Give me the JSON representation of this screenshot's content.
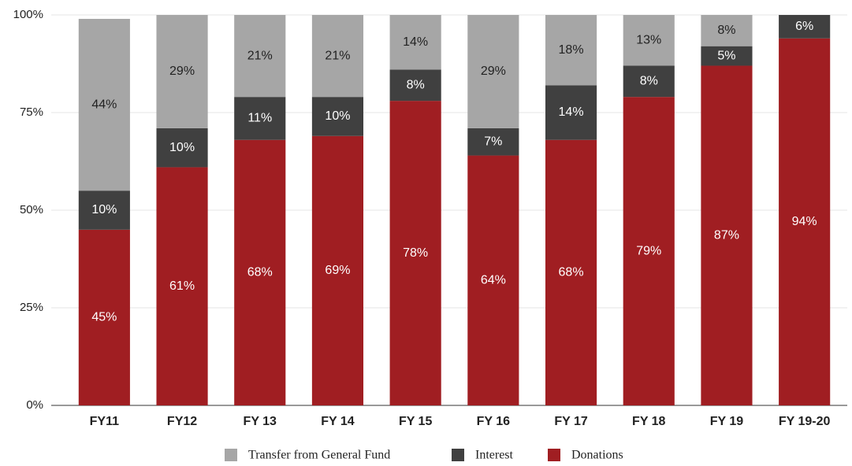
{
  "chart_data": {
    "type": "stacked_bar",
    "categories": [
      "FY11",
      "FY12",
      "FY 13",
      "FY 14",
      "FY 15",
      "FY 16",
      "FY 17",
      "FY 18",
      "FY 19",
      "FY 19-20"
    ],
    "series": [
      {
        "name": "Transfer from General Fund",
        "color": "#a6a6a6",
        "values": [
          44,
          29,
          21,
          21,
          14,
          29,
          18,
          13,
          8,
          null
        ],
        "value_labels": [
          "44%",
          "29%",
          "21%",
          "21%",
          "14%",
          "29%",
          "18%",
          "13%",
          "8%",
          null
        ]
      },
      {
        "name": "Interest",
        "color": "#404040",
        "values": [
          10,
          10,
          11,
          10,
          8,
          7,
          14,
          8,
          5,
          6
        ],
        "value_labels": [
          "10%",
          "10%",
          "11%",
          "10%",
          "8%",
          "7%",
          "14%",
          "8%",
          "5%",
          "6%"
        ]
      },
      {
        "name": "Donations",
        "color": "#a01e22",
        "values": [
          45,
          61,
          68,
          69,
          78,
          64,
          68,
          79,
          87,
          94
        ],
        "value_labels": [
          "45%",
          "61%",
          "68%",
          "69%",
          "78%",
          "64%",
          "68%",
          "79%",
          "87%",
          "94%"
        ]
      }
    ],
    "ylim": [
      0,
      100
    ],
    "yticks": [
      {
        "value": 0,
        "label": "0%"
      },
      {
        "value": 25,
        "label": "25%"
      },
      {
        "value": 50,
        "label": "50%"
      },
      {
        "value": 75,
        "label": "75%"
      },
      {
        "value": 100,
        "label": "100%"
      }
    ],
    "grid": true,
    "legend": "bottom"
  }
}
